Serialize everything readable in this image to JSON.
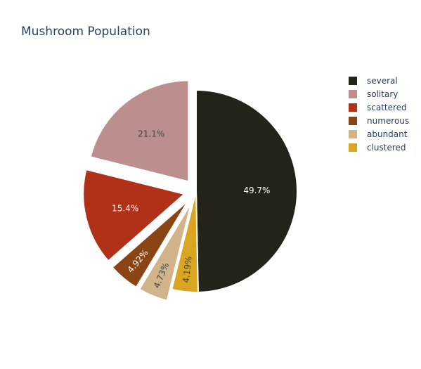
{
  "chart_data": {
    "type": "pie",
    "title": "Mushroom Population",
    "slices": [
      {
        "label": "several",
        "value": 49.7,
        "display": "49.7%",
        "color": "#23231a",
        "text_color": "#ffffff",
        "pull": 0
      },
      {
        "label": "clustered",
        "value": 4.19,
        "display": "4.19%",
        "color": "#daa521",
        "text_color": "#444444",
        "pull": 0
      },
      {
        "label": "abundant",
        "value": 4.73,
        "display": "4.73%",
        "color": "#d2b48b",
        "text_color": "#444444",
        "pull": 0.12
      },
      {
        "label": "numerous",
        "value": 4.92,
        "display": "4.92%",
        "color": "#8b4514",
        "text_color": "#ffffff",
        "pull": 0.12
      },
      {
        "label": "scattered",
        "value": 15.4,
        "display": "15.4%",
        "color": "#b03018",
        "text_color": "#ffffff",
        "pull": 0.12
      },
      {
        "label": "solitary",
        "value": 21.1,
        "display": "21.1%",
        "color": "#bc8f8e",
        "text_color": "#444444",
        "pull": 0.12
      }
    ],
    "legend": {
      "placement": "top-right",
      "order": [
        "several",
        "solitary",
        "scattered",
        "numerous",
        "abundant",
        "clustered"
      ]
    }
  }
}
